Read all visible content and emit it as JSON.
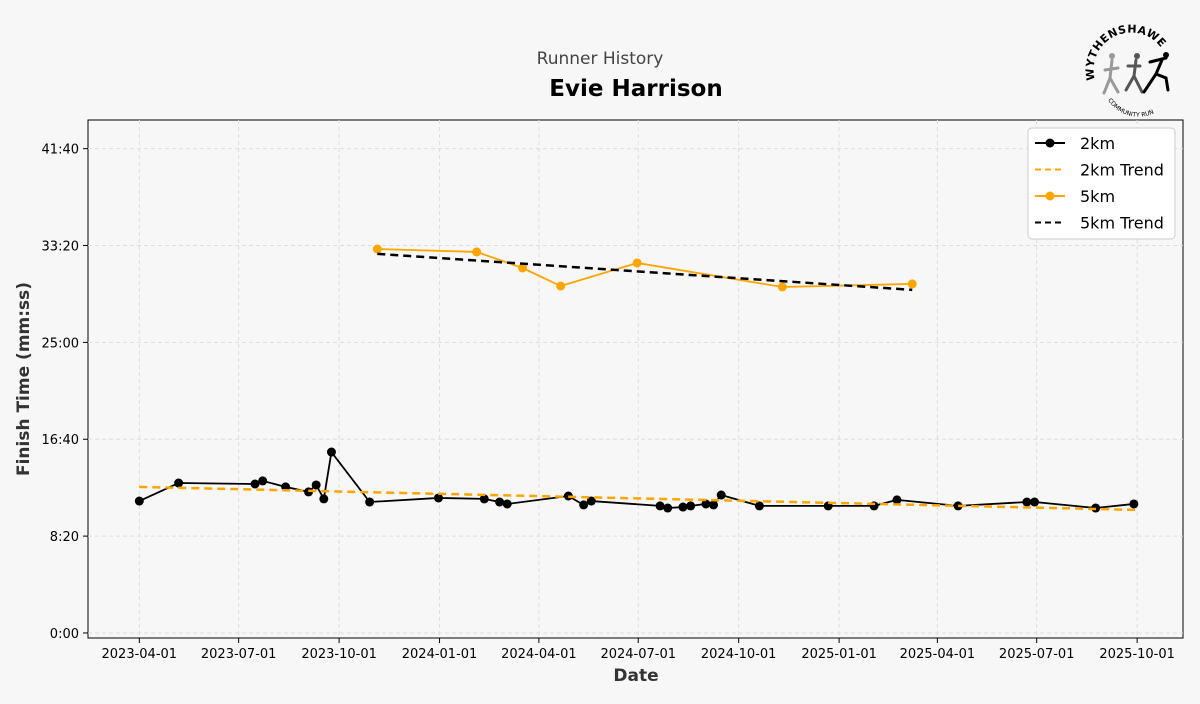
{
  "colors": {
    "black": "#000000",
    "orange": "#FFA500",
    "grid": "#dddddd"
  },
  "logo": {
    "top_text": "WYTHENSHAWE",
    "bottom_text": "COMMUNITY RUN"
  },
  "chart_data": {
    "type": "line",
    "subtitle": "Runner History",
    "title": "Evie Harrison",
    "xlabel": "Date",
    "ylabel": "Finish Time (mm:ss)",
    "xlim": [
      "2023-02-13",
      "2025-11-12"
    ],
    "ylim": [
      -26,
      2648
    ],
    "xticks": [
      "2023-04-01",
      "2023-07-01",
      "2023-10-01",
      "2024-01-01",
      "2024-04-01",
      "2024-07-01",
      "2024-10-01",
      "2025-01-01",
      "2025-04-01",
      "2025-07-01",
      "2025-10-01"
    ],
    "yticks": [
      {
        "v": 0,
        "label": "0:00"
      },
      {
        "v": 500,
        "label": "8:20"
      },
      {
        "v": 1000,
        "label": "16:40"
      },
      {
        "v": 1500,
        "label": "25:00"
      },
      {
        "v": 2000,
        "label": "33:20"
      },
      {
        "v": 2500,
        "label": "41:40"
      }
    ],
    "grid": true,
    "legend_position": "top-right",
    "series": [
      {
        "name": "2km",
        "style": "solid-marker",
        "color": "#000000",
        "x": [
          "2023-04-01",
          "2023-05-07",
          "2023-07-16",
          "2023-07-23",
          "2023-08-13",
          "2023-09-03",
          "2023-09-10",
          "2023-09-17",
          "2023-09-24",
          "2023-10-29",
          "2023-12-31",
          "2024-02-11",
          "2024-02-25",
          "2024-03-03",
          "2024-04-28",
          "2024-05-12",
          "2024-05-19",
          "2024-07-21",
          "2024-07-28",
          "2024-08-11",
          "2024-08-18",
          "2024-09-01",
          "2024-09-08",
          "2024-09-15",
          "2024-10-20",
          "2024-12-22",
          "2025-02-02",
          "2025-02-23",
          "2025-04-20",
          "2025-06-22",
          "2025-06-29",
          "2025-08-24",
          "2025-09-28"
        ],
        "y": [
          681,
          774,
          769,
          785,
          754,
          728,
          764,
          692,
          934,
          676,
          697,
          692,
          676,
          666,
          707,
          661,
          681,
          656,
          645,
          650,
          656,
          666,
          661,
          712,
          656,
          656,
          656,
          687,
          656,
          676,
          676,
          645,
          666
        ]
      },
      {
        "name": "2km Trend",
        "style": "dashed",
        "color": "#FFA500",
        "x": [
          "2023-04-01",
          "2025-10-01"
        ],
        "y": [
          754,
          635
        ]
      },
      {
        "name": "5km",
        "style": "solid-marker",
        "color": "#FFA500",
        "x": [
          "2023-11-05",
          "2024-02-04",
          "2024-03-17",
          "2024-04-21",
          "2024-06-30",
          "2024-11-10",
          "2025-03-09"
        ],
        "y": [
          1982,
          1967,
          1884,
          1791,
          1910,
          1786,
          1802
        ]
      },
      {
        "name": "5km Trend",
        "style": "dashed",
        "color": "#000000",
        "x": [
          "2023-11-05",
          "2025-03-09"
        ],
        "y": [
          1957,
          1771
        ]
      }
    ]
  }
}
